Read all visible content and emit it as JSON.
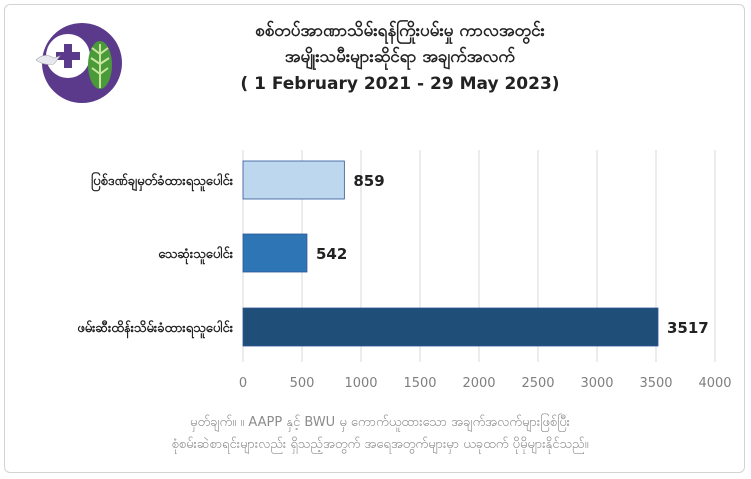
{
  "header": {
    "title_line1": "စစ်တပ်အာဏာသိမ်းရန်ကြိုးပမ်းမှု ကာလအတွင်း",
    "title_line2": "အမျိုးသမီးများဆိုင်ရာ အချက်အလက်",
    "title_line3": "( 1 February 2021 - 29 May 2023)"
  },
  "logo": {
    "icon": "organization-logo",
    "text": ""
  },
  "chart_data": {
    "type": "bar",
    "orientation": "horizontal",
    "categories": [
      "ပြစ်ဒဏ်ချမှတ်ခံထားရသူပေါင်း",
      "သေဆုံးသူပေါင်း",
      "ဖမ်းဆီးထိန်းသိမ်းခံထားရသူပေါင်း"
    ],
    "values": [
      859,
      542,
      3517
    ],
    "colors": [
      "#bdd7ee",
      "#2e75b6",
      "#1f4e79"
    ],
    "xlim": [
      0,
      4000
    ],
    "xticks": [
      0,
      500,
      1000,
      1500,
      2000,
      2500,
      3000,
      3500,
      4000
    ],
    "grid": true,
    "data_labels": true
  },
  "footer": {
    "note_line1": "မှတ်ချက်။   ။ AAPP နှင့် BWU မှ ကောက်ယူထားသော အချက်အလက်များဖြစ်ပြီး",
    "note_line2": "စုံစမ်းဆဲစာရင်းများလည်း ရှိသည့်အတွက် အရေအတွက်များမှာ ယခုထက် ပိုမိုများနိုင်သည်။"
  }
}
